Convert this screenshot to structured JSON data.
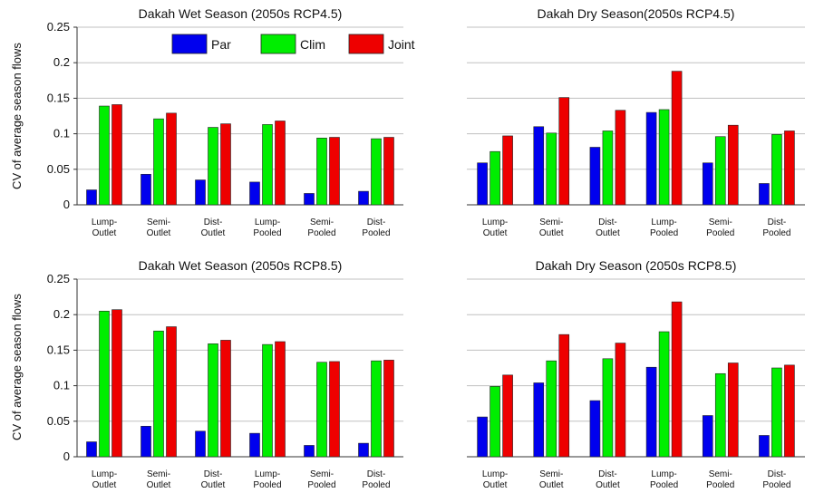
{
  "colors": {
    "Par": "#0000ee",
    "Clim": "#00ee00",
    "Joint": "#ee0000",
    "grid": "#c0c0c0"
  },
  "shared_ylabel": "CV of average season flows",
  "legend": {
    "placement": "top-right of top-left panel",
    "entries": [
      "Par",
      "Clim",
      "Joint"
    ]
  },
  "chart_data": [
    {
      "type": "bar",
      "title": "Dakah Wet Season (2050s RCP4.5)",
      "categories": [
        "Lump-\nOutlet",
        "Semi-\nOutlet",
        "Dist-\nOutlet",
        "Lump-\nPooled",
        "Semi-\nPooled",
        "Dist-\nPooled"
      ],
      "ylim": [
        0,
        0.25
      ],
      "yticks": [
        "0",
        "0.05",
        "0.1",
        "0.15",
        "0.2",
        "0.25"
      ],
      "grid": true,
      "series": [
        {
          "name": "Par",
          "values": [
            0.021,
            0.043,
            0.035,
            0.032,
            0.016,
            0.019
          ]
        },
        {
          "name": "Clim",
          "values": [
            0.139,
            0.121,
            0.109,
            0.113,
            0.094,
            0.093
          ]
        },
        {
          "name": "Joint",
          "values": [
            0.141,
            0.129,
            0.114,
            0.118,
            0.095,
            0.095
          ]
        }
      ]
    },
    {
      "type": "bar",
      "title": "Dakah Dry Season(2050s RCP4.5)",
      "categories": [
        "Lump-\nOutlet",
        "Semi-\nOutlet",
        "Dist-\nOutlet",
        "Lump-\nPooled",
        "Semi-\nPooled",
        "Dist-\nPooled"
      ],
      "ylim": [
        0,
        0.25
      ],
      "yticks": [],
      "grid": true,
      "series": [
        {
          "name": "Par",
          "values": [
            0.059,
            0.11,
            0.081,
            0.13,
            0.059,
            0.03
          ]
        },
        {
          "name": "Clim",
          "values": [
            0.075,
            0.101,
            0.104,
            0.134,
            0.096,
            0.099
          ]
        },
        {
          "name": "Joint",
          "values": [
            0.097,
            0.151,
            0.133,
            0.188,
            0.112,
            0.104
          ]
        }
      ]
    },
    {
      "type": "bar",
      "title": "Dakah Wet Season (2050s RCP8.5)",
      "categories": [
        "Lump-\nOutlet",
        "Semi-\nOutlet",
        "Dist-\nOutlet",
        "Lump-\nPooled",
        "Semi-\nPooled",
        "Dist-\nPooled"
      ],
      "ylim": [
        0,
        0.25
      ],
      "yticks": [
        "0",
        "0.05",
        "0.1",
        "0.15",
        "0.2",
        "0.25"
      ],
      "grid": true,
      "series": [
        {
          "name": "Par",
          "values": [
            0.021,
            0.043,
            0.036,
            0.033,
            0.016,
            0.019
          ]
        },
        {
          "name": "Clim",
          "values": [
            0.205,
            0.177,
            0.159,
            0.158,
            0.133,
            0.135
          ]
        },
        {
          "name": "Joint",
          "values": [
            0.207,
            0.183,
            0.164,
            0.162,
            0.134,
            0.136
          ]
        }
      ]
    },
    {
      "type": "bar",
      "title": "Dakah Dry Season (2050s RCP8.5)",
      "categories": [
        "Lump-\nOutlet",
        "Semi-\nOutlet",
        "Dist-\nOutlet",
        "Lump-\nPooled",
        "Semi-\nPooled",
        "Dist-\nPooled"
      ],
      "ylim": [
        0,
        0.25
      ],
      "yticks": [],
      "grid": true,
      "series": [
        {
          "name": "Par",
          "values": [
            0.056,
            0.104,
            0.079,
            0.126,
            0.058,
            0.03
          ]
        },
        {
          "name": "Clim",
          "values": [
            0.099,
            0.135,
            0.138,
            0.176,
            0.117,
            0.125
          ]
        },
        {
          "name": "Joint",
          "values": [
            0.115,
            0.172,
            0.16,
            0.218,
            0.132,
            0.129
          ]
        }
      ]
    }
  ]
}
